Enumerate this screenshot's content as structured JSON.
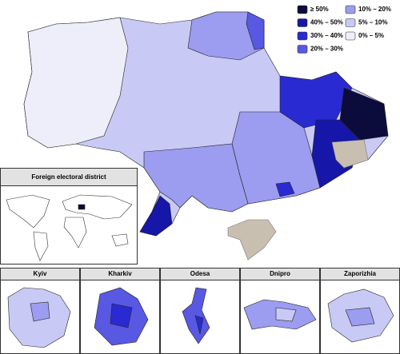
{
  "legend": {
    "items": [
      {
        "label": "≥ 50%",
        "color": "#0b0b3c"
      },
      {
        "label": "40% – 50%",
        "color": "#1616a8"
      },
      {
        "label": "30% – 40%",
        "color": "#2a2ad2"
      },
      {
        "label": "20% – 30%",
        "color": "#5858e2"
      },
      {
        "label": "10% – 20%",
        "color": "#9c9cf0"
      },
      {
        "label": "5% – 10%",
        "color": "#c9c9f6"
      },
      {
        "label": "0% – 5%",
        "color": "#eeeefb"
      }
    ]
  },
  "insets": {
    "foreign": {
      "title": "Foreign electoral district"
    },
    "cities": [
      {
        "title": "Kyiv"
      },
      {
        "title": "Kharkiv"
      },
      {
        "title": "Odesa"
      },
      {
        "title": "Dnipro"
      },
      {
        "title": "Zaporizhia"
      }
    ]
  }
}
